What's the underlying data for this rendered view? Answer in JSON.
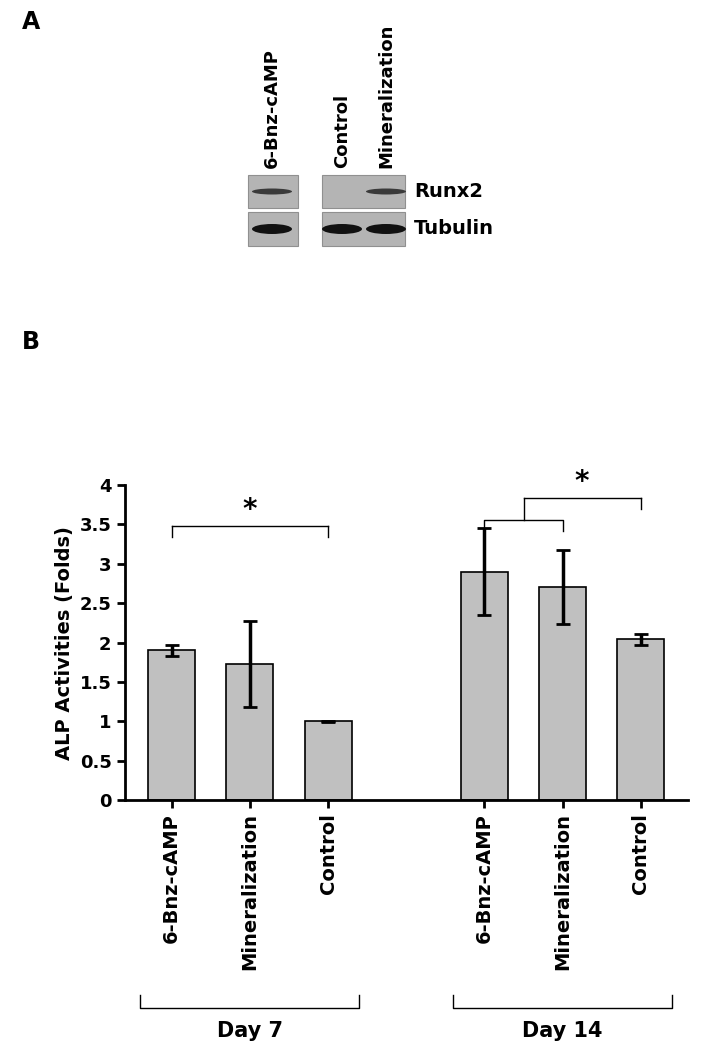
{
  "panel_labels": [
    "A",
    "B"
  ],
  "blot": {
    "lanes": [
      "6-Bnz-cAMP",
      "Control",
      "Mineralization"
    ],
    "rows": [
      "Runx2",
      "Tubulin"
    ],
    "bands": {
      "Runx2": [
        true,
        false,
        true
      ],
      "Tubulin": [
        true,
        true,
        true
      ]
    }
  },
  "chart_data": {
    "type": "bar",
    "categories": [
      "6-Bnz-cAMP",
      "Mineralization",
      "Control",
      null,
      "6-Bnz-cAMP",
      "Mineralization",
      "Control"
    ],
    "values": [
      1.9,
      1.73,
      1.0,
      null,
      2.9,
      2.7,
      2.04
    ],
    "errors": [
      0.07,
      0.55,
      0.01,
      null,
      0.55,
      0.47,
      0.07
    ],
    "color": "#c0c0c0",
    "y_label": "ALP Activities (Folds)",
    "ylim": [
      0,
      4
    ],
    "yticks": [
      0,
      0.5,
      1,
      1.5,
      2,
      2.5,
      3,
      3.5,
      4
    ],
    "groups": [
      {
        "label": "Day 7",
        "members": [
          0,
          1,
          2
        ]
      },
      {
        "label": "Day 14",
        "members": [
          4,
          5,
          6
        ]
      }
    ],
    "significance": [
      {
        "text": "*",
        "from": [
          0
        ],
        "to": [
          2
        ]
      },
      {
        "text": "*",
        "from": [
          4,
          5
        ],
        "to": [
          6
        ]
      }
    ],
    "grid": false
  }
}
